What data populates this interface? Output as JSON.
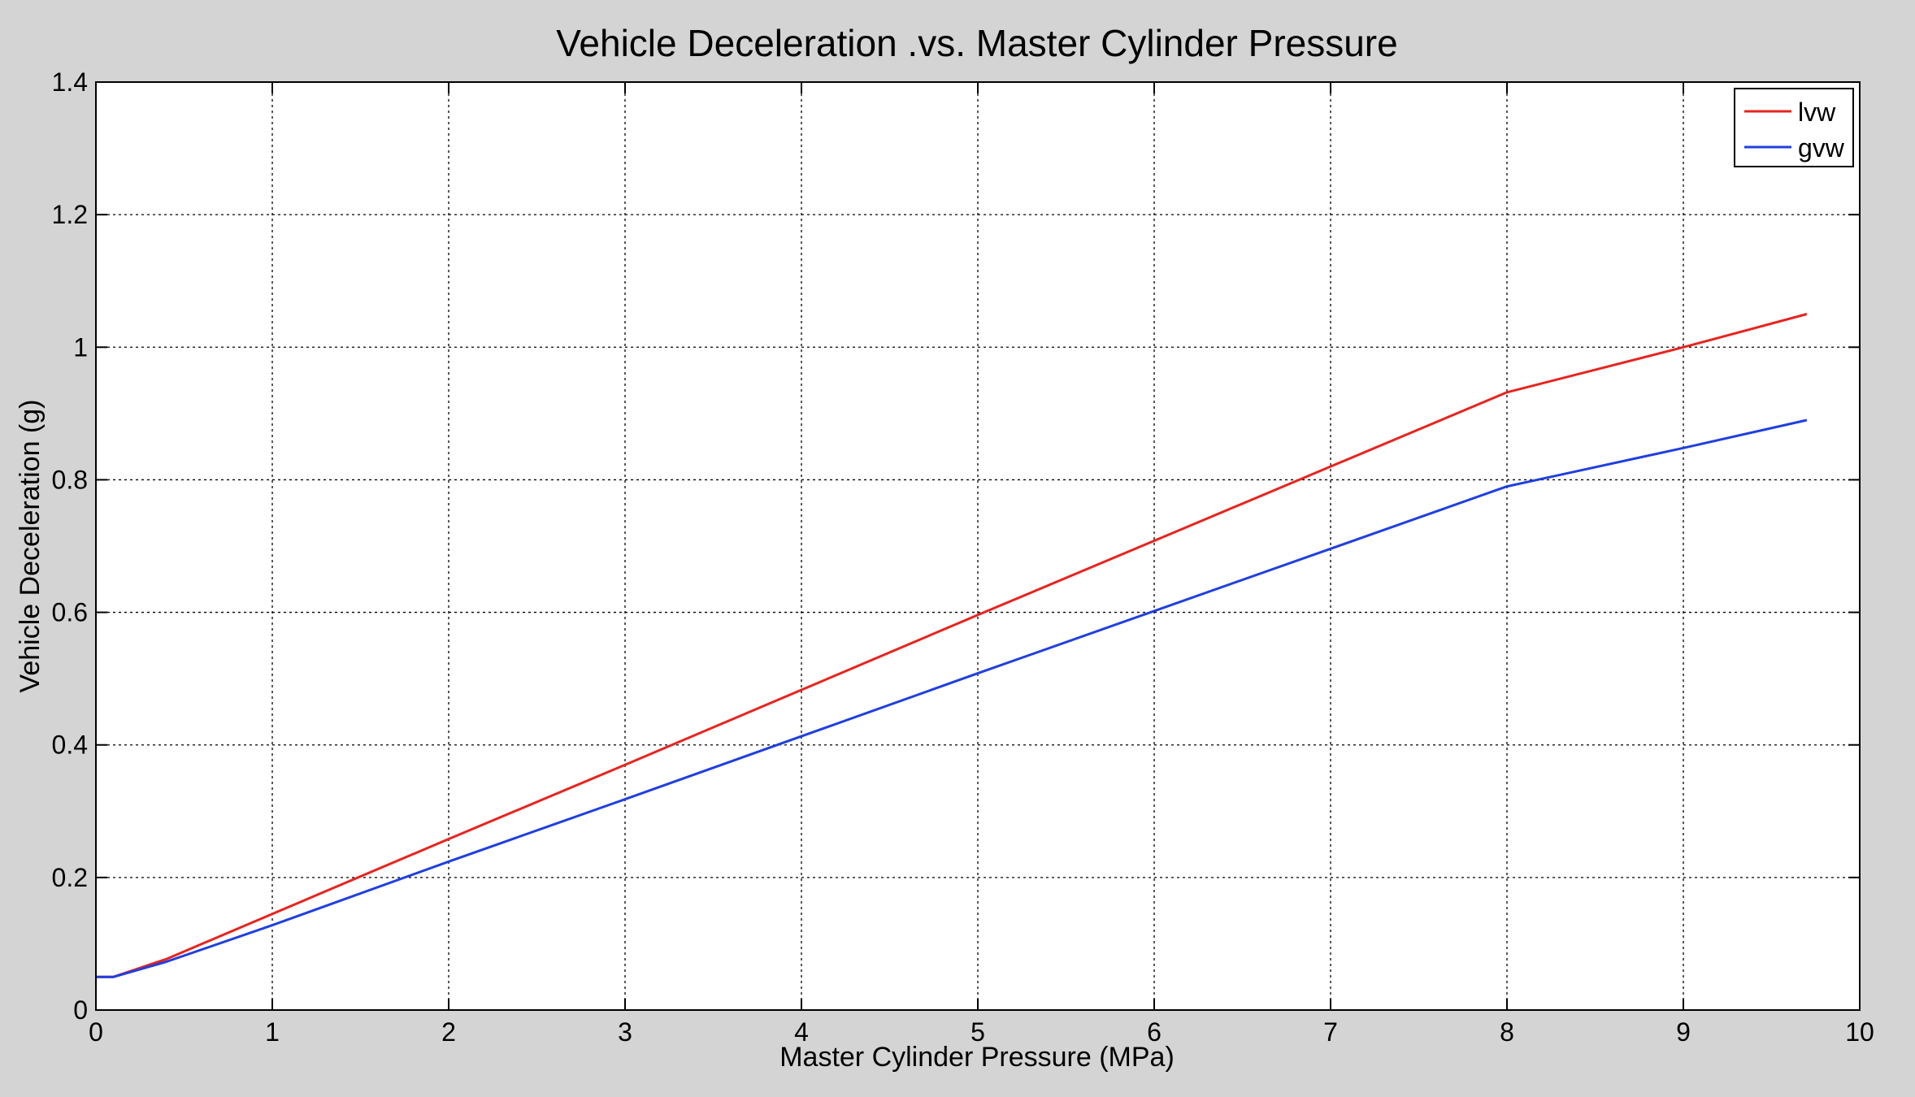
{
  "chart_data": {
    "type": "line",
    "title": "Vehicle Deceleration .vs. Master Cylinder Pressure",
    "xlabel": "Master Cylinder Pressure (MPa)",
    "ylabel": "Vehicle Deceleration (g)",
    "xlim": [
      0,
      10
    ],
    "ylim": [
      0,
      1.4
    ],
    "xticks": [
      0,
      1,
      2,
      3,
      4,
      5,
      6,
      7,
      8,
      9,
      10
    ],
    "yticks": [
      0,
      0.2,
      0.4,
      0.6,
      0.8,
      1,
      1.2,
      1.4
    ],
    "xtick_labels": [
      "0",
      "1",
      "2",
      "3",
      "4",
      "5",
      "6",
      "7",
      "8",
      "9",
      "10"
    ],
    "ytick_labels": [
      "0",
      "0.2",
      "0.4",
      "0.6",
      "0.8",
      "1",
      "1.2",
      "1.4"
    ],
    "grid": true,
    "legend_position": "top-right",
    "series": [
      {
        "name": "lvw",
        "color": "#e8231e",
        "x": [
          0,
          0.1,
          0.4,
          1,
          2,
          3,
          4,
          5,
          6,
          7,
          8,
          9,
          9.7
        ],
        "y": [
          0.05,
          0.05,
          0.077,
          0.145,
          0.258,
          0.37,
          0.483,
          0.596,
          0.708,
          0.82,
          0.932,
          1.0,
          1.05
        ]
      },
      {
        "name": "gvw",
        "color": "#1f3fe0",
        "x": [
          0,
          0.1,
          0.4,
          1,
          2,
          3,
          4,
          5,
          6,
          7,
          8,
          9,
          9.7
        ],
        "y": [
          0.05,
          0.05,
          0.073,
          0.128,
          0.224,
          0.318,
          0.413,
          0.508,
          0.602,
          0.696,
          0.79,
          0.848,
          0.89
        ]
      }
    ]
  }
}
